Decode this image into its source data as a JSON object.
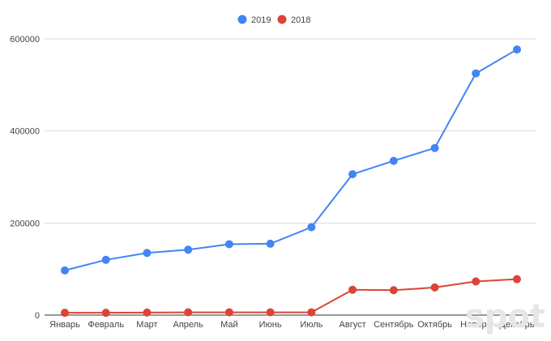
{
  "chart_data": {
    "type": "line",
    "categories": [
      "Январь",
      "Февраль",
      "Март",
      "Апрель",
      "Май",
      "Июнь",
      "Июль",
      "Август",
      "Сентябрь",
      "Октябрь",
      "Ноябрь",
      "Декабрь"
    ],
    "series": [
      {
        "name": "2019",
        "color": "#4285f4",
        "values": [
          97000,
          120000,
          135000,
          142000,
          154000,
          155000,
          191000,
          306000,
          335000,
          363000,
          525000,
          577000
        ]
      },
      {
        "name": "2018",
        "color": "#db4437",
        "values": [
          5000,
          5000,
          5500,
          6000,
          6000,
          6000,
          6000,
          55000,
          54000,
          60000,
          73000,
          78000
        ]
      }
    ],
    "y_ticks": [
      "0",
      "200000",
      "400000",
      "600000"
    ],
    "ylim": [
      0,
      600000
    ],
    "grid": true,
    "legend_position": "top-center"
  },
  "watermark": "spot"
}
